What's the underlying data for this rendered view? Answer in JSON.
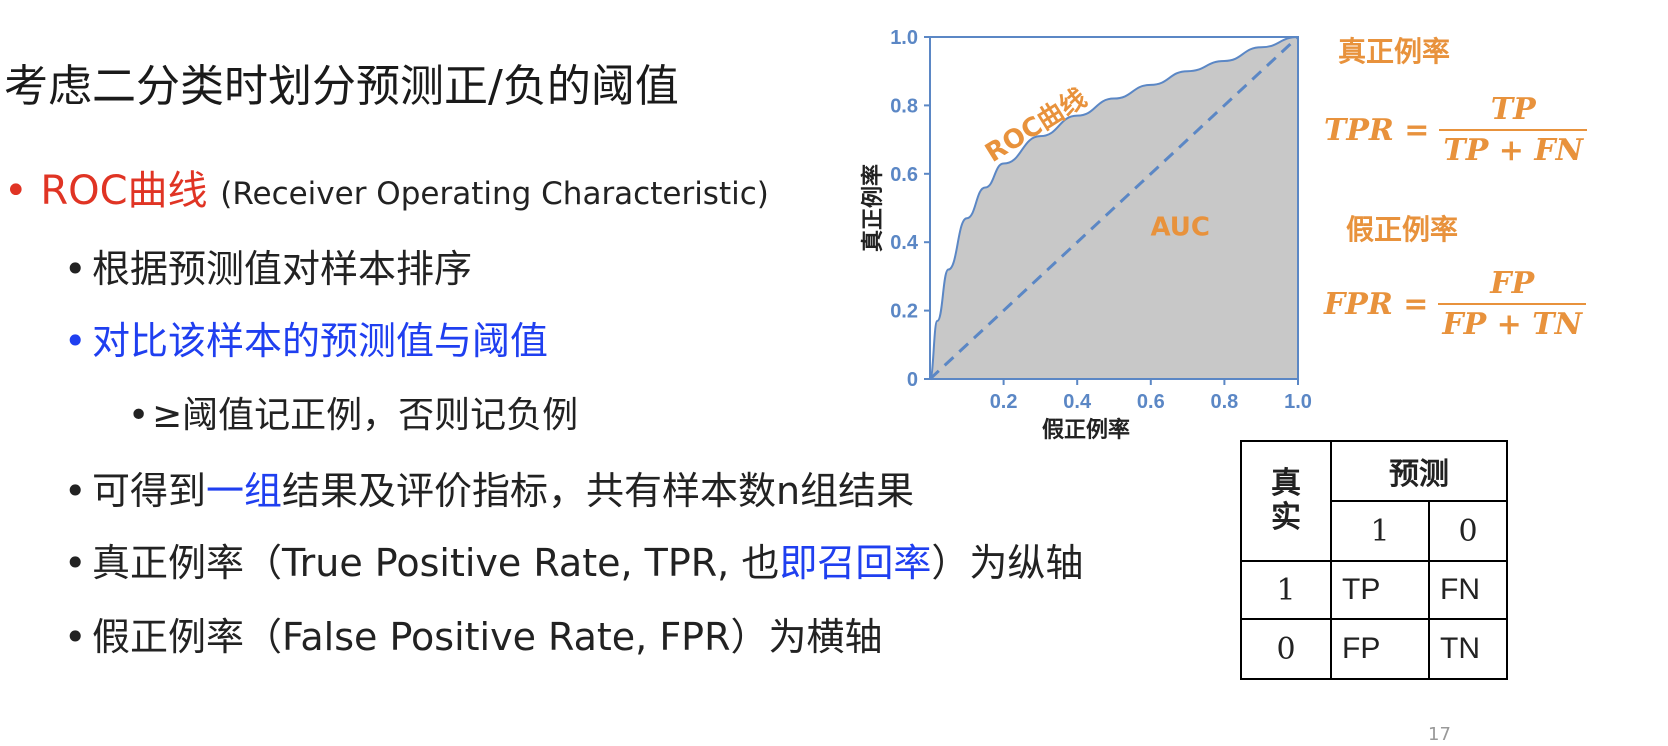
{
  "slide": {
    "title": "考虑二分类时划分预测正/负的阈值",
    "bullets": {
      "b1_main": "ROC曲线",
      "b1_sub": "(Receiver Operating Characteristic)",
      "b2": "根据预测值对样本排序",
      "b3": "对比该样本的预测值与阈值",
      "b4": "≥阈值记正例，否则记负例",
      "b5_a": "可得到",
      "b5_b": "一组",
      "b5_c": "结果及评价指标，共有样本数n组结果",
      "b6_a": "真正例率（True Positive Rate, TPR, 也",
      "b6_b": "即召回率",
      "b6_c": "）为纵轴",
      "b7": "假正例率（False Positive Rate, FPR）为横轴"
    },
    "page_number": "17"
  },
  "colors": {
    "red": "#e03424",
    "blue": "#1f3ff0",
    "orange": "#e8923c",
    "axis_blue": "#5b87c5",
    "fill_gray": "#c8c8c8"
  },
  "figure": {
    "ylabel": "真正例率",
    "xlabel": "假正例率",
    "curve_label": "ROC曲线",
    "area_label": "AUC",
    "tpr_title": "真正例率",
    "fpr_title": "假正例率",
    "tpr_formula": {
      "lhs": "TPR =",
      "num": "TP",
      "den": "TP + FN"
    },
    "fpr_formula": {
      "lhs": "FPR =",
      "num": "FP",
      "den": "FP + TN"
    }
  },
  "chart_data": {
    "type": "area",
    "x": [
      0,
      0.02,
      0.05,
      0.1,
      0.15,
      0.2,
      0.3,
      0.4,
      0.5,
      0.6,
      0.7,
      0.8,
      0.9,
      1.0
    ],
    "series": [
      {
        "name": "ROC曲线",
        "values": [
          0,
          0.17,
          0.32,
          0.47,
          0.56,
          0.63,
          0.71,
          0.77,
          0.82,
          0.86,
          0.9,
          0.93,
          0.97,
          1.0
        ]
      },
      {
        "values": [
          0,
          0.02,
          0.05,
          0.1,
          0.15,
          0.2,
          0.3,
          0.4,
          0.5,
          0.6,
          0.7,
          0.8,
          0.9,
          1.0
        ]
      }
    ],
    "xticks": [
      "0.2",
      "0.4",
      "0.6",
      "0.8",
      "1.0"
    ],
    "yticks": [
      "0",
      "0.2",
      "0.4",
      "0.6",
      "0.8",
      "1.0"
    ],
    "xlim": [
      0,
      1
    ],
    "ylim": [
      0,
      1
    ],
    "xlabel": "假正例率",
    "ylabel": "真正例率",
    "grid": false
  },
  "confusion_table": {
    "row_header": "真实",
    "col_header": "预测",
    "col_values": [
      "1",
      "0"
    ],
    "rows": [
      {
        "label": "1",
        "cells": [
          "TP",
          "FN"
        ]
      },
      {
        "label": "0",
        "cells": [
          "FP",
          "TN"
        ]
      }
    ]
  }
}
